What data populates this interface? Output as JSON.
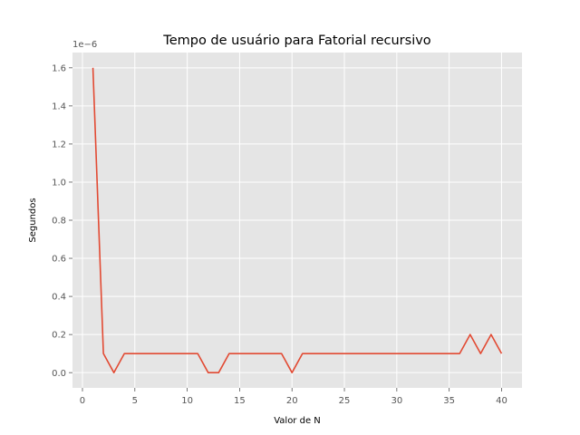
{
  "chart_data": {
    "type": "line",
    "title": "Tempo de usuário para Fatorial recursivo",
    "xlabel": "Valor de N",
    "ylabel": "Segundos",
    "y_offset_label": "1e−6",
    "xlim": [
      -0.95,
      41.95
    ],
    "ylim": [
      -0.08,
      1.68
    ],
    "x_ticks": [
      0,
      5,
      10,
      15,
      20,
      25,
      30,
      35,
      40
    ],
    "x_tick_labels": [
      "0",
      "5",
      "10",
      "15",
      "20",
      "25",
      "30",
      "35",
      "40"
    ],
    "y_ticks": [
      0.0,
      0.2,
      0.4,
      0.6,
      0.8,
      1.0,
      1.2,
      1.4,
      1.6
    ],
    "y_tick_labels": [
      "0.0",
      "0.2",
      "0.4",
      "0.6",
      "0.8",
      "1.0",
      "1.2",
      "1.4",
      "1.6"
    ],
    "grid": true,
    "series": [
      {
        "name": "Fatorial recursivo",
        "color": "#E24A33",
        "x": [
          1,
          2,
          3,
          4,
          5,
          6,
          7,
          8,
          9,
          10,
          11,
          12,
          13,
          14,
          15,
          16,
          17,
          18,
          19,
          20,
          21,
          22,
          23,
          24,
          25,
          26,
          27,
          28,
          29,
          30,
          31,
          32,
          33,
          34,
          35,
          36,
          37,
          38,
          39,
          40
        ],
        "values": [
          1.6,
          0.1,
          0.0,
          0.1,
          0.1,
          0.1,
          0.1,
          0.1,
          0.1,
          0.1,
          0.1,
          0.0,
          0.0,
          0.1,
          0.1,
          0.1,
          0.1,
          0.1,
          0.1,
          0.0,
          0.1,
          0.1,
          0.1,
          0.1,
          0.1,
          0.1,
          0.1,
          0.1,
          0.1,
          0.1,
          0.1,
          0.1,
          0.1,
          0.1,
          0.1,
          0.1,
          0.2,
          0.1,
          0.2,
          0.1
        ]
      }
    ]
  },
  "colors": {
    "plot_background": "#E5E5E5",
    "grid": "#FFFFFF",
    "tick_text": "#555555",
    "title_text": "#000000"
  }
}
